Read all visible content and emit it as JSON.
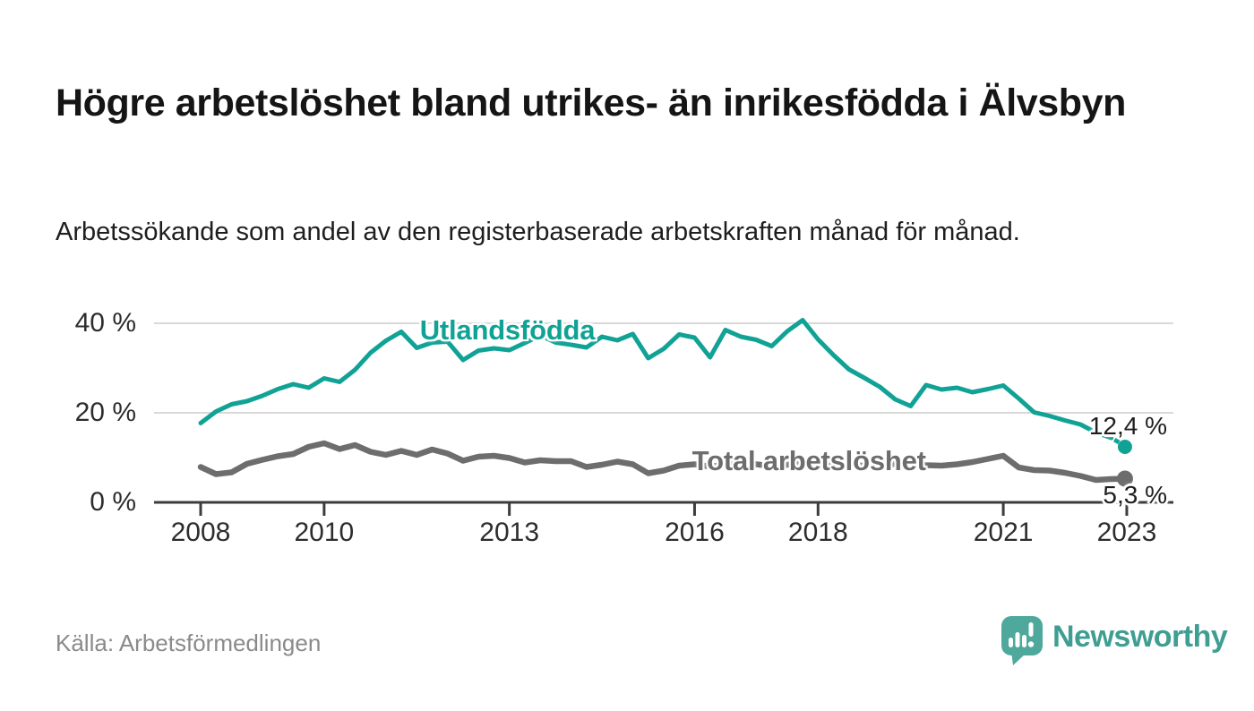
{
  "page": {
    "title": "Högre arbetslöshet bland utrikes- än inrikesfödda i Älvsbyn",
    "subtitle": "Arbetssökande som andel av den registerbaserade arbetskraften månad för månad.",
    "source": "Källa: Arbetsförmedlingen",
    "logo_text": "Newsworthy"
  },
  "colors": {
    "accent_teal": "#11a296",
    "series_gray": "#6d6d6d",
    "gridline": "#d9d9d9",
    "axis": "#3c3c3c",
    "logo_icon": "#4ea89c",
    "logo_text": "#3f9e92"
  },
  "chart_data": {
    "type": "line",
    "title": "Högre arbetslöshet bland utrikes- än inrikesfödda i Älvsbyn",
    "subtitle": "Arbetssökande som andel av den registerbaserade arbetskraften månad för månad.",
    "x_start": 2008,
    "x_step": 0.25,
    "xlim": [
      2008,
      2023.75
    ],
    "ylim": [
      0,
      42
    ],
    "grid": "horizontal",
    "y_axis": {
      "ticks": [
        {
          "value": 0,
          "label": "0 %"
        },
        {
          "value": 20,
          "label": "20 %"
        },
        {
          "value": 40,
          "label": "40 %"
        }
      ]
    },
    "x_axis": {
      "ticks": [
        {
          "year": 2008,
          "label": "2008"
        },
        {
          "year": 2010,
          "label": "2010"
        },
        {
          "year": 2013,
          "label": "2013"
        },
        {
          "year": 2016,
          "label": "2016"
        },
        {
          "year": 2018,
          "label": "2018"
        },
        {
          "year": 2021,
          "label": "2021"
        },
        {
          "year": 2023,
          "label": "2023"
        }
      ]
    },
    "series": [
      {
        "name": "Utlandsfödda",
        "color": "#11a296",
        "end_label": "12,4 %",
        "end_dash": true,
        "label_anchor": {
          "x": 2011.55,
          "y": 38.5
        },
        "values": [
          17.7,
          20.3,
          21.9,
          22.6,
          23.8,
          25.3,
          26.4,
          25.6,
          27.7,
          26.9,
          29.6,
          33.4,
          36.1,
          38.1,
          34.5,
          35.7,
          35.9,
          31.8,
          33.9,
          34.4,
          34.0,
          35.6,
          37.3,
          35.7,
          35.2,
          34.6,
          37.0,
          36.2,
          37.6,
          32.2,
          34.3,
          37.5,
          36.8,
          32.4,
          38.5,
          37.0,
          36.3,
          34.9,
          38.2,
          40.7,
          36.4,
          32.9,
          29.7,
          27.8,
          25.8,
          23.0,
          21.5,
          26.2,
          25.2,
          25.6,
          24.6,
          25.3,
          26.1,
          23.2,
          20.1,
          19.3,
          18.3,
          17.4,
          15.6,
          14.4,
          12.4
        ]
      },
      {
        "name": "Total arbetslöshet",
        "color": "#6d6d6d",
        "end_label": "5,3 %",
        "end_dash": false,
        "label_anchor": {
          "x": 2015.96,
          "y": 9.3
        },
        "values": [
          7.9,
          6.3,
          6.7,
          8.6,
          9.5,
          10.3,
          10.8,
          12.4,
          13.2,
          11.9,
          12.8,
          11.3,
          10.6,
          11.5,
          10.6,
          11.8,
          10.9,
          9.3,
          10.2,
          10.4,
          9.9,
          8.9,
          9.4,
          9.2,
          9.2,
          7.9,
          8.4,
          9.1,
          8.5,
          6.5,
          7.1,
          8.2,
          8.5,
          8.0,
          8.4,
          8.7,
          8.5,
          8.1,
          8.4,
          8.7,
          8.4,
          8.1,
          8.3,
          8.2,
          8.3,
          8.6,
          8.6,
          8.3,
          8.2,
          8.5,
          9.0,
          9.7,
          10.4,
          7.8,
          7.2,
          7.1,
          6.6,
          5.9,
          5.0,
          5.2,
          5.3
        ]
      }
    ]
  }
}
